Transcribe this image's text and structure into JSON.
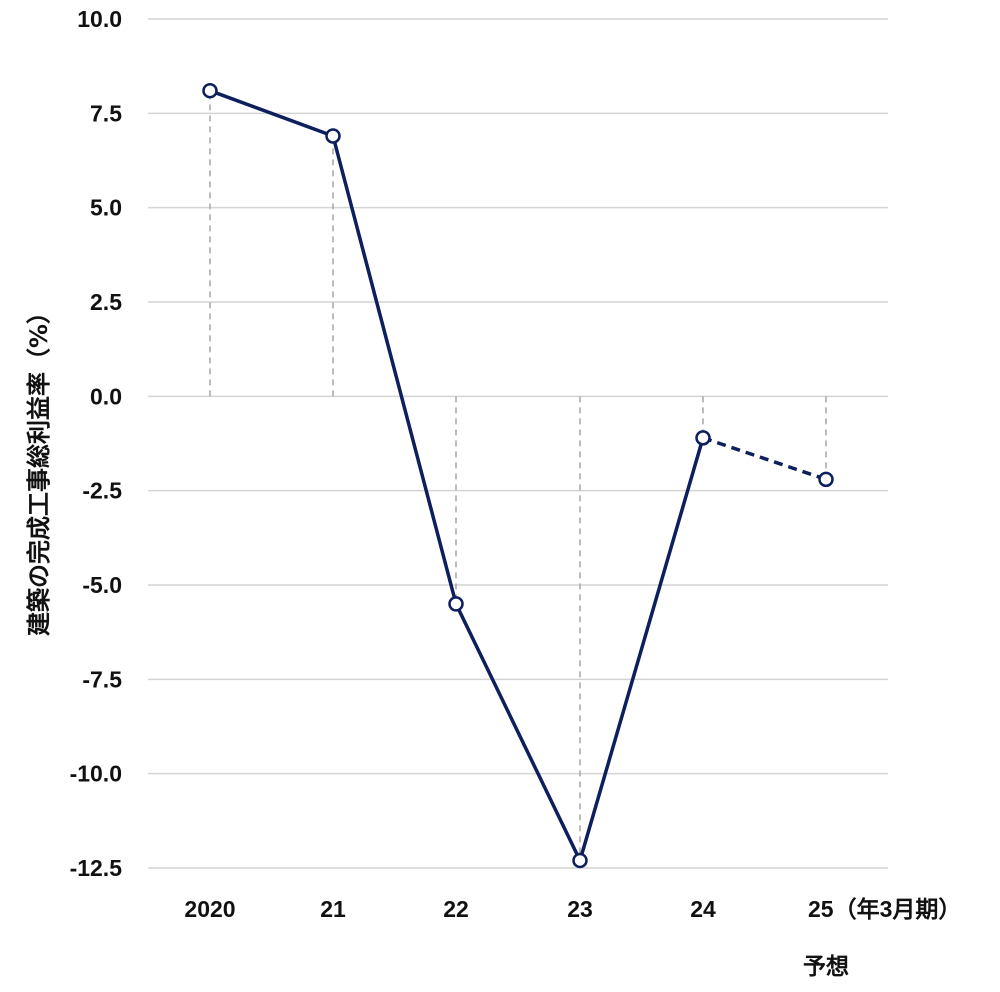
{
  "chart_data": {
    "type": "line",
    "ylabel": "建築の完成工事総利益率（%）",
    "xlabel": "",
    "title": "",
    "ylim": [
      -12.5,
      10.0
    ],
    "yticks": [
      "10.0",
      "7.5",
      "5.0",
      "2.5",
      "0.0",
      "-2.5",
      "-5.0",
      "-7.5",
      "-10.0",
      "-12.5"
    ],
    "categories": [
      "2020",
      "21",
      "22",
      "23",
      "24",
      "25"
    ],
    "last_category_suffix": "（年3月期）",
    "forecast_label": "予想",
    "values": [
      8.1,
      6.9,
      -5.5,
      -12.3,
      -1.1,
      -2.2
    ],
    "forecast_from_index": 4,
    "grid": "horizontal",
    "colors": {
      "line": "#0d1f5c",
      "grid": "#d4d4d4",
      "dropline": "#a6a6a6"
    }
  }
}
